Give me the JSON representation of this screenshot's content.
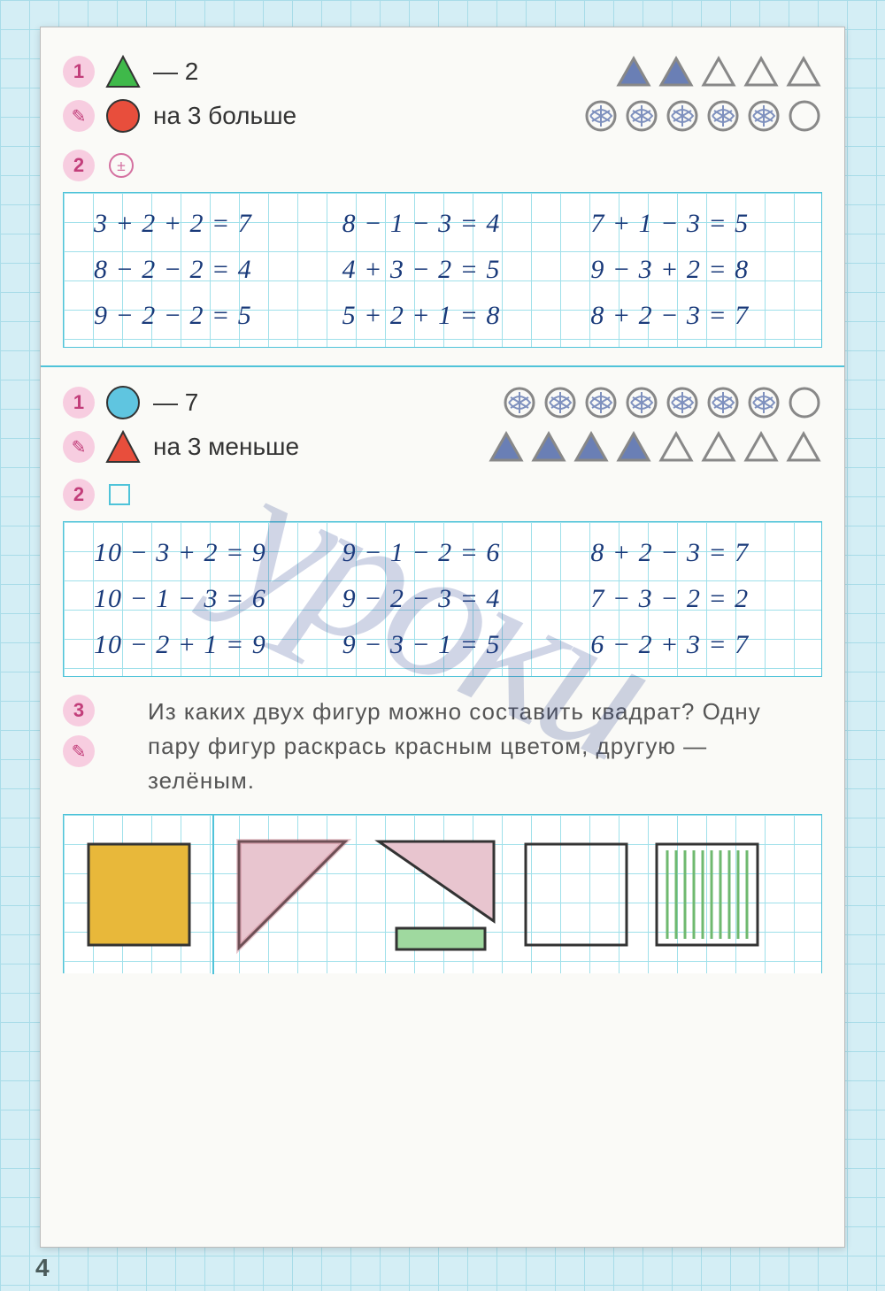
{
  "page_number": "4",
  "colors": {
    "grid": "#9fe0ea",
    "badge_bg": "#f7cde0",
    "badge_fg": "#c23e7a",
    "ink": "#1a3a7a",
    "triangle_green": "#3fb94a",
    "circle_red": "#e84e3c",
    "circle_blue": "#5fc5e0",
    "triangle_red": "#e84e3c",
    "outline_gray": "#888",
    "fill_blue_scribble": "#6a7fb5",
    "square_yellow": "#e8b83a"
  },
  "section1": {
    "badge1": "1",
    "row1_text": "— 2",
    "pencil_icon": "✎",
    "row2_text": "на 3 больше",
    "triangles_count": 5,
    "circles_count": 6,
    "circles_filled": 5,
    "badge2": "2",
    "pm_label": "±",
    "equations": {
      "col1": [
        "3 + 2 + 2 = 7",
        "8 − 2 − 2 = 4",
        "9 − 2 − 2 = 5"
      ],
      "col2": [
        "8 − 1 − 3 = 4",
        "4 + 3 − 2 = 5",
        "5 + 2 + 1 = 8"
      ],
      "col3": [
        "7 + 1 − 3 = 5",
        "9 − 3 + 2 = 8",
        "8 + 2 − 3 = 7"
      ]
    }
  },
  "section2": {
    "badge1": "1",
    "row1_text": "— 7",
    "pencil_icon": "✎",
    "row2_text": "на 3 меньше",
    "circles_count": 8,
    "circles_filled": 7,
    "triangles_count": 8,
    "triangles_filled": 4,
    "badge2": "2",
    "equations": {
      "col1": [
        "10 − 3 + 2 = 9",
        "10 − 1 − 3 = 6",
        "10 − 2 + 1 = 9"
      ],
      "col2": [
        "9 − 1 − 2 = 6",
        "9 − 2 − 3 = 4",
        "9 − 3 − 1 = 5"
      ],
      "col3": [
        "8 + 2 − 3 = 7",
        "7 − 3 − 2 = 2",
        "6 − 2 + 3 = 7"
      ]
    }
  },
  "section3": {
    "badge": "3",
    "pencil_icon": "✎",
    "question": "Из каких двух фигур можно составить квад­рат? Одну пару фигур раскрась красным цве­том, другую — зелёным.",
    "shapes": {
      "square_fill": "#e8b83a",
      "tri_red_fill": "#d98a9a",
      "rect_green_fill": "#7fc97f",
      "rect_green_stripes": "#6fb96f"
    }
  }
}
